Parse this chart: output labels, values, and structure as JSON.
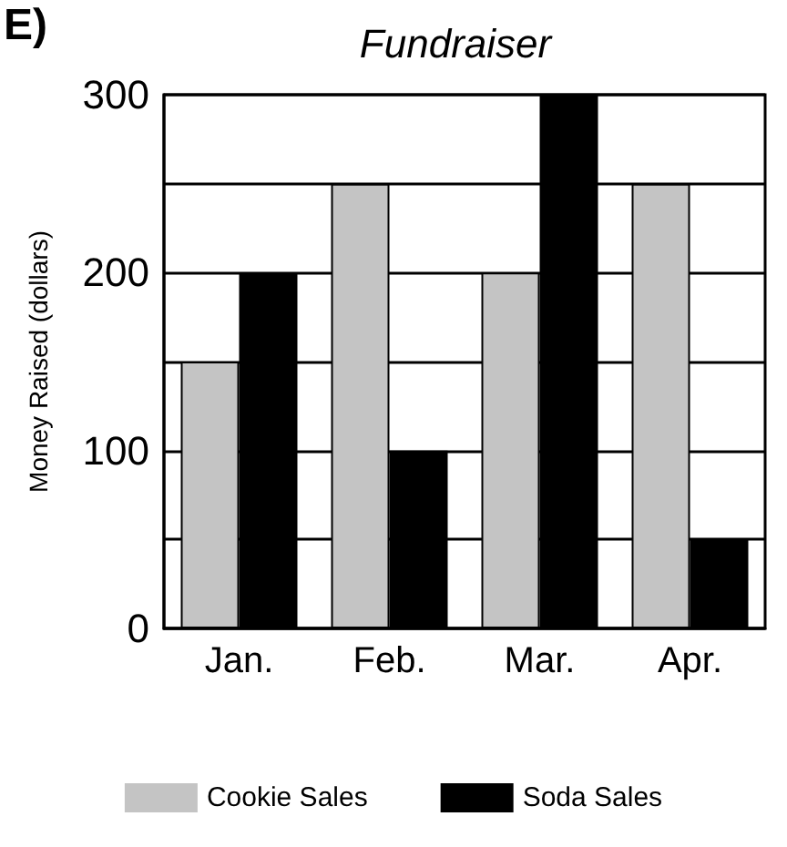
{
  "chart_data": {
    "type": "bar",
    "title": "Fundraiser",
    "ylabel": "Money Raised (dollars)",
    "annotations": [
      "E)"
    ],
    "categories": [
      "Jan.",
      "Feb.",
      "Mar.",
      "Apr."
    ],
    "series": [
      {
        "name": "Cookie Sales",
        "color": "#c4c4c4",
        "values": [
          150,
          250,
          200,
          250
        ]
      },
      {
        "name": "Soda Sales",
        "color": "#000000",
        "values": [
          200,
          100,
          300,
          50
        ]
      }
    ],
    "ylim": [
      0,
      300
    ],
    "yticks": [
      0,
      {
        "value": 50,
        "label": null
      },
      100,
      {
        "value": 150,
        "label": null
      },
      200,
      {
        "value": 250,
        "label": null
      },
      300
    ],
    "grid": "y",
    "legend": "bottom"
  }
}
